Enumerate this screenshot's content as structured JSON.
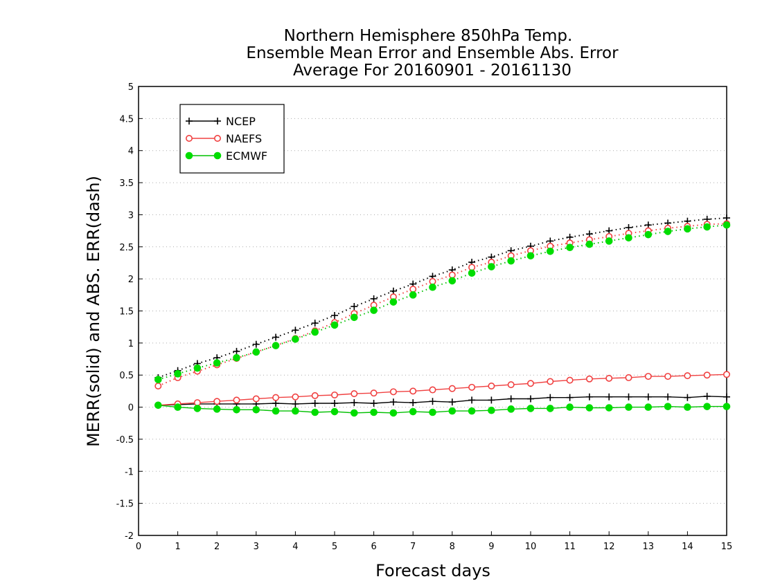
{
  "chart_data": {
    "type": "line",
    "title_lines": [
      "Northern Hemisphere 850hPa Temp.",
      "Ensemble Mean Error and Ensemble Abs. Error",
      "Average For 20160901 - 20161130"
    ],
    "xlabel": "Forecast days",
    "ylabel": "MERR(solid) and ABS. ERR(dash)",
    "xlim": [
      0,
      15
    ],
    "ylim": [
      -2,
      5
    ],
    "x_ticks": [
      "0",
      "1",
      "2",
      "3",
      "4",
      "5",
      "6",
      "7",
      "8",
      "9",
      "10",
      "11",
      "12",
      "13",
      "14",
      "15"
    ],
    "y_ticks": [
      "-2",
      "-1.5",
      "-1",
      "-0.5",
      "0",
      "0.5",
      "1",
      "1.5",
      "2",
      "2.5",
      "3",
      "3.5",
      "4",
      "4.5",
      "5"
    ],
    "grid": "horizontal dotted",
    "legend_position": "top-left",
    "x": [
      0.5,
      1,
      1.5,
      2,
      2.5,
      3,
      3.5,
      4,
      4.5,
      5,
      5.5,
      6,
      6.5,
      7,
      7.5,
      8,
      8.5,
      9,
      9.5,
      10,
      10.5,
      11,
      11.5,
      12,
      12.5,
      13,
      13.5,
      14,
      14.5,
      15
    ],
    "series": [
      {
        "name": "NCEP",
        "color": "#000000",
        "marker": "plus",
        "merr": [
          0.03,
          0.04,
          0.05,
          0.05,
          0.05,
          0.05,
          0.06,
          0.05,
          0.06,
          0.06,
          0.07,
          0.06,
          0.08,
          0.07,
          0.09,
          0.08,
          0.11,
          0.11,
          0.13,
          0.13,
          0.15,
          0.15,
          0.16,
          0.16,
          0.16,
          0.16,
          0.16,
          0.15,
          0.17,
          0.16
        ],
        "abs_err": [
          0.46,
          0.57,
          0.68,
          0.77,
          0.87,
          0.98,
          1.09,
          1.2,
          1.31,
          1.43,
          1.57,
          1.69,
          1.81,
          1.92,
          2.04,
          2.14,
          2.26,
          2.34,
          2.44,
          2.51,
          2.59,
          2.65,
          2.7,
          2.75,
          2.8,
          2.84,
          2.87,
          2.9,
          2.93,
          2.95
        ]
      },
      {
        "name": "NAEFS",
        "color": "#f04040",
        "marker": "open-circle",
        "merr": [
          0.03,
          0.05,
          0.07,
          0.09,
          0.11,
          0.13,
          0.15,
          0.16,
          0.18,
          0.19,
          0.21,
          0.22,
          0.24,
          0.25,
          0.27,
          0.29,
          0.31,
          0.33,
          0.35,
          0.37,
          0.4,
          0.42,
          0.44,
          0.45,
          0.46,
          0.48,
          0.48,
          0.49,
          0.5,
          0.51
        ],
        "abs_err": [
          0.33,
          0.46,
          0.56,
          0.66,
          0.76,
          0.86,
          0.96,
          1.07,
          1.19,
          1.32,
          1.46,
          1.59,
          1.72,
          1.84,
          1.96,
          2.06,
          2.18,
          2.26,
          2.36,
          2.44,
          2.51,
          2.56,
          2.61,
          2.66,
          2.71,
          2.75,
          2.79,
          2.82,
          2.85,
          2.86
        ]
      },
      {
        "name": "ECMWF",
        "color": "#00dd00",
        "marker": "filled-circle",
        "merr": [
          0.03,
          0.0,
          -0.02,
          -0.03,
          -0.04,
          -0.04,
          -0.06,
          -0.06,
          -0.08,
          -0.07,
          -0.09,
          -0.08,
          -0.09,
          -0.07,
          -0.08,
          -0.06,
          -0.06,
          -0.05,
          -0.03,
          -0.02,
          -0.02,
          0.0,
          -0.01,
          -0.01,
          0.0,
          0.0,
          0.01,
          0.0,
          0.01,
          0.01
        ],
        "abs_err": [
          0.43,
          0.52,
          0.61,
          0.69,
          0.77,
          0.86,
          0.96,
          1.06,
          1.17,
          1.28,
          1.4,
          1.51,
          1.64,
          1.75,
          1.87,
          1.97,
          2.09,
          2.19,
          2.28,
          2.36,
          2.43,
          2.49,
          2.54,
          2.59,
          2.64,
          2.69,
          2.74,
          2.78,
          2.81,
          2.84
        ]
      }
    ]
  }
}
